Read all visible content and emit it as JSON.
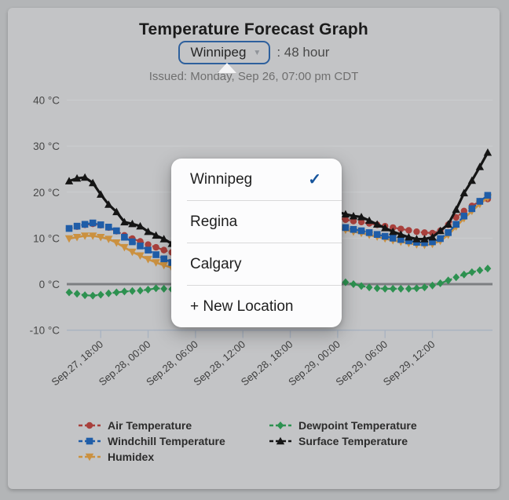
{
  "header": {
    "title": "Temperature Forecast Graph",
    "location_selector": {
      "value": "Winnipeg"
    },
    "duration_suffix": ": 48 hour",
    "issued": "Issued: Monday, Sep 26, 07:00 pm CDT"
  },
  "icons": {
    "chevron_down": "▼",
    "check": "✓"
  },
  "location_menu": {
    "items": [
      {
        "label": "Winnipeg",
        "selected": true
      },
      {
        "label": "Regina",
        "selected": false
      },
      {
        "label": "Calgary",
        "selected": false
      },
      {
        "label": "+ New Location",
        "selected": false
      }
    ]
  },
  "colors": {
    "page_bg": "#b3b5b7",
    "panel_bg": "#c3c4c6",
    "accent_blue": "#2e609d",
    "checkmark": "#15549c",
    "grid": "#cbcdcf",
    "zero_line": "#7c7e81",
    "axis_line": "#a9b3c1",
    "axis_text": "#474747"
  },
  "chart_data": {
    "type": "line",
    "title": "Temperature Forecast Graph",
    "xlabel": "",
    "ylabel": "°C",
    "ylim": [
      -10,
      40
    ],
    "grid": true,
    "legend_position": "bottom",
    "x_unit": "hours (1-hour steps, 54 points)",
    "yticks": [
      {
        "value": 40,
        "label": "40 °C"
      },
      {
        "value": 30,
        "label": "30 °C"
      },
      {
        "value": 20,
        "label": "20 °C"
      },
      {
        "value": 10,
        "label": "10 °C"
      },
      {
        "value": 0,
        "label": "0 °C"
      },
      {
        "value": -10,
        "label": "-10 °C"
      }
    ],
    "xticks": [
      {
        "hour": 4,
        "label": "Sep.27, 18:00"
      },
      {
        "hour": 10,
        "label": "Sep.28, 00:00"
      },
      {
        "hour": 16,
        "label": "Sep.28, 06:00"
      },
      {
        "hour": 22,
        "label": "Sep.28, 12:00"
      },
      {
        "hour": 28,
        "label": "Sep.28, 18:00"
      },
      {
        "hour": 34,
        "label": "Sep.29, 00:00"
      },
      {
        "hour": 40,
        "label": "Sep.29, 06:00"
      },
      {
        "hour": 46,
        "label": "Sep.29, 12:00"
      }
    ],
    "series": [
      {
        "name": "Air Temperature",
        "color": "#a8403c",
        "marker": "circle",
        "line_style": "dashed",
        "values": [
          12.1,
          12.5,
          12.9,
          13.1,
          12.8,
          12.3,
          11.5,
          10.6,
          9.9,
          9.3,
          8.6,
          8.0,
          7.4,
          6.9,
          6.4,
          6.0,
          5.8,
          6.2,
          7.5,
          9.0,
          10.8,
          12.5,
          14.0,
          15.2,
          16.0,
          16.4,
          16.4,
          16.2,
          15.8,
          15.4,
          15.1,
          14.9,
          14.7,
          14.6,
          14.4,
          14.0,
          13.7,
          13.5,
          13.2,
          12.9,
          12.6,
          12.3,
          12.0,
          11.7,
          11.4,
          11.2,
          11.1,
          11.6,
          12.9,
          14.5,
          15.9,
          17.0,
          18.0,
          18.5
        ]
      },
      {
        "name": "Windchill Temperature",
        "color": "#1f5da8",
        "marker": "square",
        "line_style": "dashed",
        "values": [
          12.1,
          12.6,
          13.0,
          13.3,
          12.9,
          12.4,
          11.6,
          10.2,
          9.2,
          8.3,
          7.4,
          6.4,
          5.5,
          4.7,
          4.2,
          3.9,
          3.8,
          4.3,
          5.8,
          7.6,
          9.6,
          11.5,
          13.2,
          14.4,
          15.2,
          15.6,
          15.6,
          15.3,
          14.8,
          14.3,
          13.8,
          13.4,
          13.1,
          12.9,
          12.7,
          12.3,
          11.9,
          11.6,
          11.2,
          10.8,
          10.4,
          10.0,
          9.7,
          9.4,
          9.1,
          9.0,
          9.2,
          9.9,
          11.2,
          13.0,
          14.8,
          16.4,
          18.0,
          19.3
        ]
      },
      {
        "name": "Humidex",
        "color": "#cb9140",
        "marker": "triangle-down",
        "line_style": "solid",
        "values": [
          9.9,
          10.2,
          10.5,
          10.5,
          10.2,
          9.8,
          9.0,
          8.0,
          7.0,
          6.2,
          5.4,
          4.7,
          4.1,
          3.6,
          3.2,
          3.0,
          3.0,
          3.5,
          5.0,
          6.8,
          8.8,
          10.8,
          12.5,
          13.8,
          14.6,
          15.0,
          15.0,
          14.7,
          14.2,
          13.7,
          13.2,
          12.8,
          12.5,
          12.3,
          12.1,
          11.8,
          11.4,
          11.1,
          10.7,
          10.3,
          9.9,
          9.5,
          9.2,
          8.9,
          8.6,
          8.5,
          8.7,
          9.4,
          10.7,
          12.5,
          14.3,
          15.9,
          17.4,
          18.8
        ]
      },
      {
        "name": "Dewpoint Temperature",
        "color": "#2d9150",
        "marker": "diamond",
        "line_style": "dashed",
        "values": [
          -1.8,
          -2.1,
          -2.4,
          -2.5,
          -2.3,
          -2.0,
          -1.8,
          -1.6,
          -1.5,
          -1.4,
          -1.2,
          -0.9,
          -1.0,
          -1.1,
          -1.2,
          -1.3,
          -1.2,
          -1.0,
          -0.6,
          -0.2,
          0.2,
          0.5,
          0.7,
          0.8,
          0.8,
          0.7,
          0.6,
          0.5,
          0.5,
          0.4,
          0.4,
          0.3,
          0.3,
          0.3,
          0.7,
          0.4,
          0.0,
          -0.4,
          -0.7,
          -0.9,
          -1.0,
          -1.0,
          -1.0,
          -1.0,
          -0.9,
          -0.7,
          -0.3,
          0.2,
          0.8,
          1.5,
          2.1,
          2.6,
          3.0,
          3.4
        ]
      },
      {
        "name": "Surface Temperature",
        "color": "#151515",
        "marker": "triangle-up",
        "line_style": "solid",
        "values": [
          22.4,
          23.0,
          23.2,
          22.0,
          19.5,
          17.3,
          15.7,
          13.5,
          13.1,
          12.6,
          11.4,
          10.6,
          9.8,
          8.8,
          8.2,
          7.6,
          7.2,
          7.8,
          9.5,
          11.5,
          13.5,
          15.5,
          17.0,
          18.2,
          19.0,
          19.3,
          19.2,
          18.8,
          18.3,
          17.8,
          17.4,
          17.0,
          16.6,
          16.1,
          15.7,
          15.2,
          14.8,
          14.6,
          13.8,
          13.0,
          12.2,
          11.4,
          10.8,
          10.2,
          9.8,
          9.8,
          10.2,
          11.6,
          13.0,
          16.2,
          19.8,
          22.5,
          25.5,
          28.6
        ]
      }
    ]
  }
}
